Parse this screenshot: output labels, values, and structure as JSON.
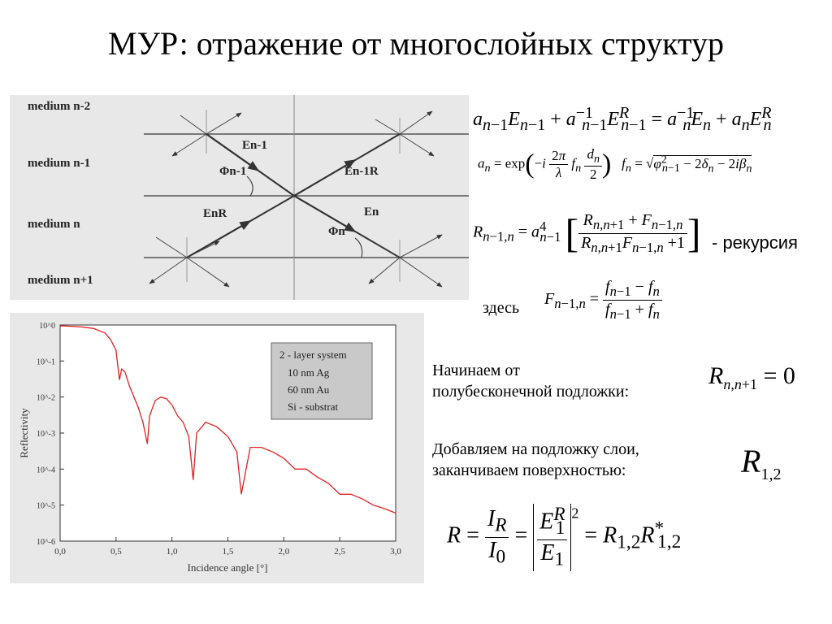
{
  "title": "МУР: отражение от многослойных структур",
  "diagram": {
    "media": [
      "medium n-2",
      "medium n-1",
      "medium n",
      "medium n+1"
    ],
    "labels": {
      "e_n_minus_1": "En-1",
      "e_n_minus_1_r": "En-1R",
      "phi_n_minus_1": "Φn-1",
      "e_n_r": "EnR",
      "e_n": "En",
      "phi_n": "Φn"
    }
  },
  "chart_data": {
    "type": "line",
    "xlabel": "Incidence angle  [°]",
    "ylabel": "Reflectivity",
    "xlim": [
      0,
      3.0
    ],
    "ylim_log10": [
      -6,
      0
    ],
    "log_y": true,
    "x_ticks": [
      "0,0",
      "0,5",
      "1,0",
      "1,5",
      "2,0",
      "2,5",
      "3,0"
    ],
    "y_ticks": [
      "10^0",
      "10^-1",
      "10^-2",
      "10^-3",
      "10^-4",
      "10^-5",
      "10^-6"
    ],
    "legend": [
      "2 - layer system",
      "10 nm Ag",
      "60 nm Au",
      "Si - substrat"
    ],
    "legend_position": "top-right",
    "series_color": "#e02020",
    "series": [
      {
        "x": [
          0.0,
          0.1,
          0.2,
          0.3,
          0.4,
          0.45,
          0.5,
          0.53,
          0.55,
          0.58,
          0.62,
          0.66,
          0.7,
          0.74,
          0.78,
          0.8,
          0.85,
          0.9,
          0.95,
          1.0,
          1.05,
          1.1,
          1.15,
          1.19,
          1.22,
          1.3,
          1.4,
          1.5,
          1.58,
          1.62,
          1.7,
          1.8,
          1.9,
          2.0,
          2.1,
          2.2,
          2.3,
          2.4,
          2.5,
          2.6,
          2.7,
          2.8,
          2.9,
          3.0
        ],
        "y": [
          0.95,
          0.92,
          0.88,
          0.8,
          0.6,
          0.4,
          0.2,
          0.03,
          0.06,
          0.05,
          0.02,
          0.01,
          0.005,
          0.002,
          0.0005,
          0.003,
          0.008,
          0.01,
          0.009,
          0.006,
          0.003,
          0.002,
          0.0008,
          5e-05,
          0.001,
          0.002,
          0.0015,
          0.0008,
          0.0003,
          2e-05,
          0.0004,
          0.0004,
          0.0003,
          0.0002,
          0.0001,
          0.0001,
          6e-05,
          4e-05,
          2e-05,
          2e-05,
          1.5e-05,
          1e-05,
          8e-06,
          6e-06
        ]
      }
    ]
  },
  "equations": {
    "recursion_note": "- рекурсия",
    "here_label": "здесь"
  },
  "text": {
    "start_line1": "Начинаем от",
    "start_line2": "полубесконечной подложки:",
    "add_line1": "Добавляем на подложку слои,",
    "add_line2": "заканчиваем поверхностью:"
  }
}
